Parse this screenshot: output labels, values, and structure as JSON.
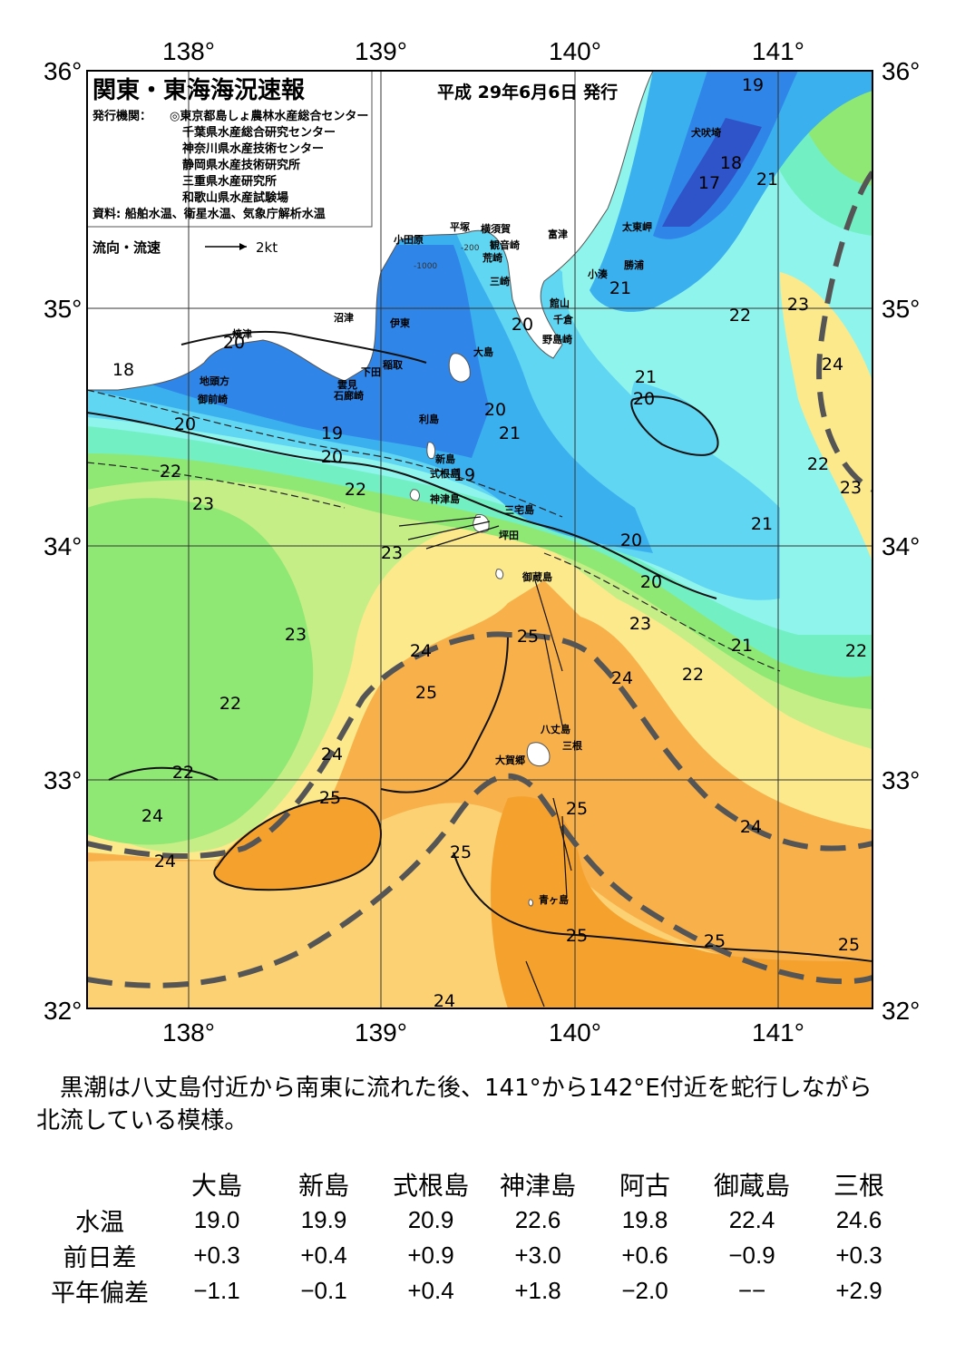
{
  "map": {
    "title": "関東・東海海況速報",
    "date": "平成 29年6月6日 発行",
    "issuer_label": "発行機関：",
    "issuers": [
      "◎東京都島しょ農林水産総合センター",
      "千葉県水産総合研究センター",
      "神奈川県水産技術センター",
      "静岡県水産技術研究所",
      "三重県水産研究所",
      "和歌山県水産試験場"
    ],
    "source": "資料: 船舶水温、衛星水温、気象庁解析水温",
    "legend_label": "流向・流速",
    "legend_speed": "2kt",
    "lon_labels": [
      "138°",
      "139°",
      "140°",
      "141°"
    ],
    "lat_labels": [
      "36°",
      "35°",
      "34°",
      "33°",
      "32°"
    ],
    "place_names": [
      "犬吠埼",
      "太東岬",
      "勝浦",
      "小湊",
      "館山",
      "千倉",
      "野島崎",
      "富津",
      "観音崎",
      "荒崎",
      "三崎",
      "横須賀",
      "平塚",
      "小田原",
      "沼津",
      "伊東",
      "稲取",
      "下田",
      "雲見",
      "石廊崎",
      "焼津",
      "地頭方",
      "御前崎",
      "大島",
      "利島",
      "新島",
      "式根島",
      "神津島",
      "三宅島",
      "坪田",
      "御蔵島",
      "八丈島",
      "三根",
      "大賀郷",
      "青ヶ島"
    ],
    "depth_labels": [
      "-200",
      "-1000"
    ],
    "temperature_labels": [
      "19",
      "18",
      "17",
      "21",
      "21",
      "22",
      "23",
      "24",
      "20",
      "21",
      "20",
      "20",
      "21",
      "22",
      "23",
      "18",
      "20",
      "20",
      "19",
      "20",
      "22",
      "22",
      "23",
      "23",
      "19",
      "21",
      "20",
      "20",
      "23",
      "21",
      "22",
      "23",
      "25",
      "24",
      "24",
      "25",
      "22",
      "24",
      "22",
      "22",
      "25",
      "25",
      "24",
      "25",
      "25",
      "25",
      "24",
      "24",
      "24",
      "25"
    ]
  },
  "note": {
    "line1": "　黒潮は八丈島付近から南東に流れた後、141°から142°E付近を蛇行しながら",
    "line2": "北流している模様。"
  },
  "table": {
    "headers": [
      "",
      "大島",
      "新島",
      "式根島",
      "神津島",
      "阿古",
      "御蔵島",
      "三根"
    ],
    "rows": [
      {
        "label": "水温",
        "values": [
          "19.0",
          "19.9",
          "20.9",
          "22.6",
          "19.8",
          "22.4",
          "24.6"
        ]
      },
      {
        "label": "前日差",
        "values": [
          "+0.3",
          "+0.4",
          "+0.9",
          "+3.0",
          "+0.6",
          "−0.9",
          "+0.3"
        ]
      },
      {
        "label": "平年偏差",
        "values": [
          "−1.1",
          "−0.1",
          "+0.4",
          "+1.8",
          "−2.0",
          "−−",
          "+2.9"
        ]
      }
    ]
  },
  "colors": {
    "deep_blue": "#2f53c9",
    "blue": "#2f86e8",
    "mid_blue": "#3bb0ee",
    "cyan": "#60d6f2",
    "light_cyan": "#8ff5ec",
    "aqua": "#72f0c4",
    "green": "#8ee873",
    "light_green": "#c6ee87",
    "yellow": "#fbe98c",
    "light_orange": "#fbd173",
    "orange": "#f8b14a",
    "deep_orange": "#f5a12e",
    "land": "#ffffff"
  }
}
